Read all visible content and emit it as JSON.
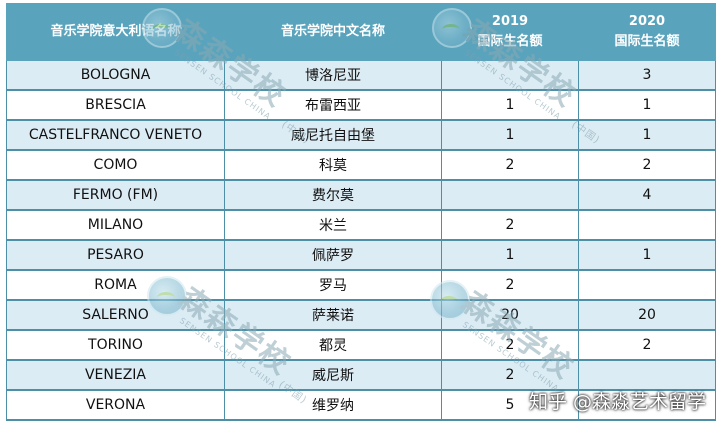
{
  "table": {
    "headers": [
      {
        "lines": [
          "音乐学院意大利语名称"
        ]
      },
      {
        "lines": [
          "音乐学院中文名称"
        ]
      },
      {
        "lines": [
          "2019",
          "国际生名额"
        ]
      },
      {
        "lines": [
          "2020",
          "国际生名额"
        ]
      }
    ],
    "rows": [
      {
        "it": "BOLOGNA",
        "cn": "博洛尼亚",
        "y2019": "",
        "y2020": "3"
      },
      {
        "it": "BRESCIA",
        "cn": "布雷西亚",
        "y2019": "1",
        "y2020": "1"
      },
      {
        "it": "CASTELFRANCO VENETO",
        "cn": "威尼托自由堡",
        "y2019": "1",
        "y2020": "1"
      },
      {
        "it": "COMO",
        "cn": "科莫",
        "y2019": "2",
        "y2020": "2"
      },
      {
        "it": "FERMO (FM)",
        "cn": "费尔莫",
        "y2019": "",
        "y2020": "4"
      },
      {
        "it": "MILANO",
        "cn": "米兰",
        "y2019": "2",
        "y2020": ""
      },
      {
        "it": "PESARO",
        "cn": "佩萨罗",
        "y2019": "1",
        "y2020": "1"
      },
      {
        "it": "ROMA",
        "cn": "罗马",
        "y2019": "2",
        "y2020": ""
      },
      {
        "it": "SALERNO",
        "cn": "萨莱诺",
        "y2019": "20",
        "y2020": "20"
      },
      {
        "it": "TORINO",
        "cn": "都灵",
        "y2019": "2",
        "y2020": "2"
      },
      {
        "it": "VENEZIA",
        "cn": "威尼斯",
        "y2019": "2",
        "y2020": ""
      },
      {
        "it": "VERONA",
        "cn": "维罗纳",
        "y2019": "5",
        "y2020": ""
      }
    ]
  },
  "watermark": {
    "text": "森森学校",
    "sub": "SENSEN SCHOOL CHINA",
    "tag": "(中国)"
  },
  "credit": "知乎 @森淼艺术留学"
}
